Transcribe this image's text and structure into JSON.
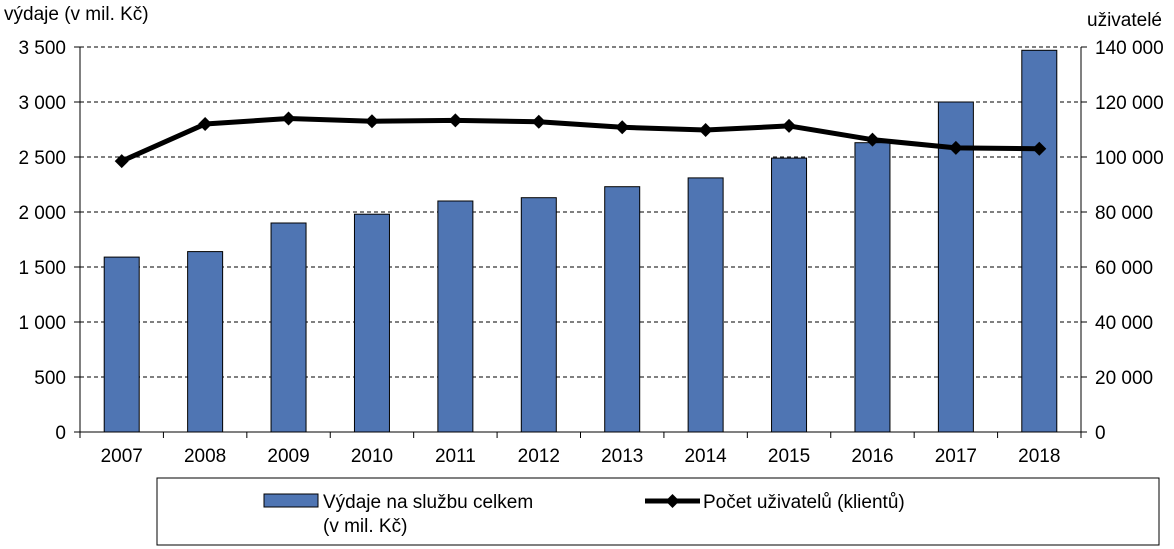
{
  "chart_data": {
    "type": "bar+line",
    "categories": [
      "2007",
      "2008",
      "2009",
      "2010",
      "2011",
      "2012",
      "2013",
      "2014",
      "2015",
      "2016",
      "2017",
      "2018"
    ],
    "series": [
      {
        "name": "Výdaje na službu celkem",
        "name_line2": "(v mil. Kč)",
        "type": "bar",
        "axis": "left",
        "color": "#4f75b3",
        "values": [
          1590,
          1640,
          1900,
          1980,
          2100,
          2130,
          2230,
          2310,
          2490,
          2630,
          3000,
          3470
        ]
      },
      {
        "name": "Počet uživatelů (klientů)",
        "type": "line",
        "axis": "right",
        "color": "#000000",
        "values": [
          98500,
          112000,
          114000,
          113000,
          113300,
          112800,
          110800,
          109800,
          111300,
          106300,
          103300,
          103000
        ]
      }
    ],
    "left_axis": {
      "title": "výdaje (v mil. Kč)",
      "ylim": [
        0,
        3500
      ],
      "ticks": [
        0,
        500,
        1000,
        1500,
        2000,
        2500,
        3000,
        3500
      ],
      "tick_labels": [
        "0",
        "500",
        "1 000",
        "1 500",
        "2 000",
        "2 500",
        "3 000",
        "3 500"
      ]
    },
    "right_axis": {
      "title": "uživatelé",
      "ylim": [
        0,
        140000
      ],
      "ticks": [
        0,
        20000,
        40000,
        60000,
        80000,
        100000,
        120000,
        140000
      ],
      "tick_labels": [
        "0",
        "20 000",
        "40 000",
        "60 000",
        "80 000",
        "100 000",
        "120 000",
        "140 000"
      ]
    },
    "grid": true,
    "legend_position": "bottom"
  }
}
